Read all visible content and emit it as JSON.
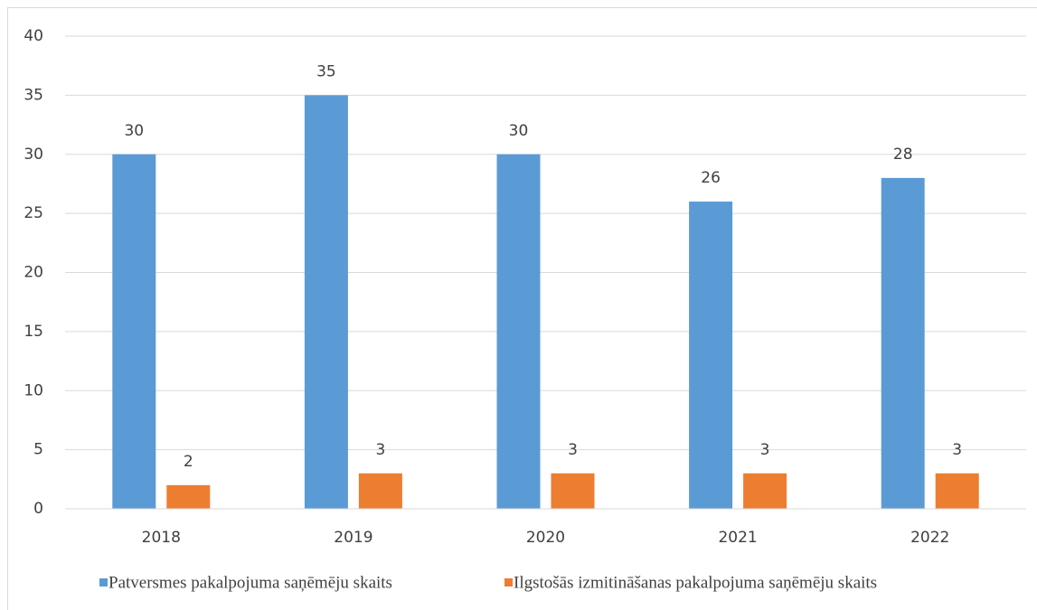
{
  "chart_data": {
    "type": "bar",
    "categories": [
      "2018",
      "2019",
      "2020",
      "2021",
      "2022"
    ],
    "series": [
      {
        "name": "Patversmes pakalpojuma saņēmēju skaits",
        "color": "#5b9bd5",
        "values": [
          30,
          35,
          30,
          26,
          28
        ]
      },
      {
        "name": "Ilgstošās izmitināšanas pakalpojuma saņēmēju skaits",
        "color": "#ed7d31",
        "values": [
          2,
          3,
          3,
          3,
          3
        ]
      }
    ],
    "ylim": [
      0,
      40
    ],
    "yticks": [
      0,
      5,
      10,
      15,
      20,
      25,
      30,
      35,
      40
    ],
    "grid": true,
    "data_labels": true,
    "legend": "bottom"
  }
}
